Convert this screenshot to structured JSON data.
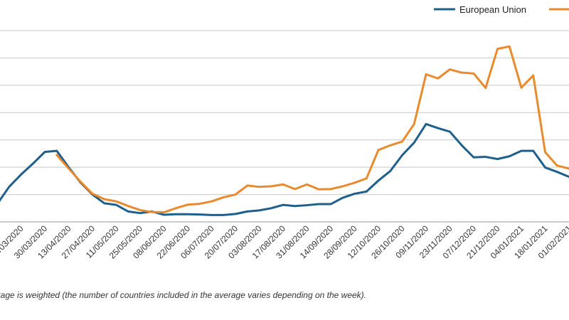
{
  "chart_data": {
    "type": "line",
    "categories": [
      "02/03/2020",
      "09/03/2020",
      "16/03/2020",
      "23/03/2020",
      "30/03/2020",
      "06/04/2020",
      "13/04/2020",
      "20/04/2020",
      "27/04/2020",
      "04/05/2020",
      "11/05/2020",
      "18/05/2020",
      "25/05/2020",
      "01/06/2020",
      "08/06/2020",
      "15/06/2020",
      "22/06/2020",
      "29/06/2020",
      "06/07/2020",
      "13/07/2020",
      "20/07/2020",
      "27/07/2020",
      "03/08/2020",
      "10/08/2020",
      "17/08/2020",
      "24/08/2020",
      "31/08/2020",
      "07/09/2020",
      "14/09/2020",
      "21/09/2020",
      "28/09/2020",
      "05/10/2020",
      "12/10/2020",
      "19/10/2020",
      "26/10/2020",
      "02/11/2020",
      "09/11/2020",
      "16/11/2020",
      "23/11/2020",
      "30/11/2020",
      "07/12/2020",
      "14/12/2020",
      "21/12/2020",
      "28/12/2020",
      "04/01/2021",
      "11/01/2021",
      "18/01/2021",
      "25/01/2021",
      "01/02/2021"
    ],
    "x_tick_labels": [
      "02/03/2020",
      "16/03/2020",
      "30/03/2020",
      "13/04/2020",
      "27/04/2020",
      "11/05/2020",
      "25/05/2020",
      "08/06/2020",
      "22/06/2020",
      "06/07/2020",
      "20/07/2020",
      "03/08/2020",
      "17/08/2020",
      "31/08/2020",
      "14/09/2020",
      "28/09/2020",
      "12/10/2020",
      "26/10/2020",
      "09/11/2020",
      "23/11/2020",
      "07/12/2020",
      "21/12/2020",
      "04/01/2021",
      "18/01/2021",
      "01/02/2021"
    ],
    "series": [
      {
        "name": "European Union",
        "color": "#1f5f8b",
        "values": [
          6.5,
          12.8,
          17.3,
          21.3,
          25.6,
          26.0,
          20.0,
          14.4,
          10.0,
          6.8,
          6.2,
          3.8,
          3.2,
          3.8,
          2.6,
          2.8,
          2.8,
          2.7,
          2.5,
          2.5,
          2.9,
          3.8,
          4.2,
          5.0,
          6.2,
          5.8,
          6.1,
          6.5,
          6.5,
          8.8,
          10.3,
          11.1,
          15.1,
          18.6,
          24.4,
          29.0,
          35.8,
          34.3,
          33.0,
          28.0,
          23.6,
          23.8,
          23.0,
          24.0,
          26.0,
          26.0,
          19.9,
          18.3,
          16.5
        ]
      },
      {
        "name": "",
        "color": "#ea8a2e",
        "values": [
          null,
          null,
          null,
          null,
          null,
          24.5,
          19.5,
          14.7,
          10.3,
          8.3,
          7.5,
          5.8,
          4.3,
          3.6,
          3.5,
          5.0,
          6.3,
          6.6,
          7.5,
          9.0,
          10.0,
          13.3,
          12.8,
          13.0,
          13.7,
          12.0,
          13.7,
          11.9,
          12.0,
          13.0,
          14.3,
          15.9,
          26.3,
          28.0,
          29.4,
          35.8,
          54.0,
          52.5,
          55.8,
          54.6,
          54.3,
          49.0,
          63.3,
          64.2,
          49.1,
          53.6,
          25.5,
          20.6,
          19.5
        ]
      }
    ],
    "yaxis": {
      "min": 0,
      "max": 70,
      "gridlines": [
        0,
        10,
        20,
        30,
        40,
        50,
        60,
        70
      ]
    },
    "grid": true,
    "legend_placement": "top-right"
  },
  "note": "erage is weighted (the number of countries included in the average varies depending on the week)."
}
